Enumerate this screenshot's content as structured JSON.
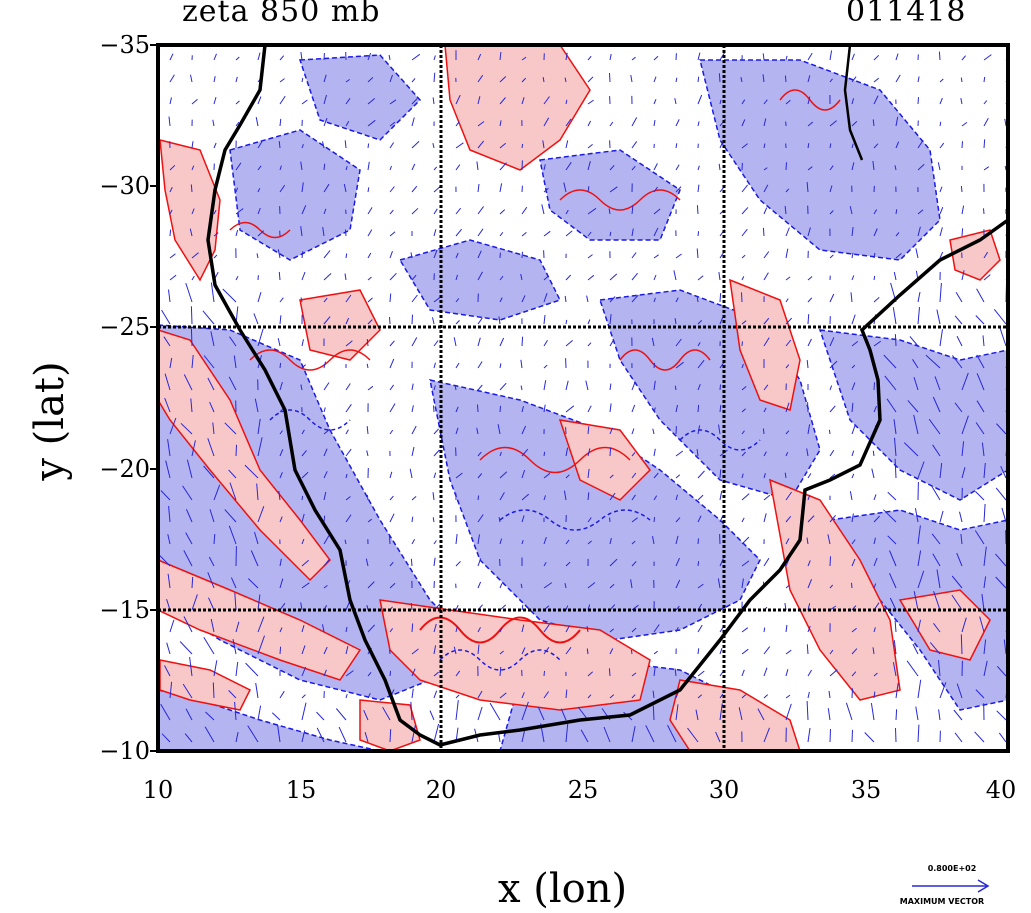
{
  "map": {
    "title": "zeta 850 mb",
    "date_code": "011418",
    "x_axis_label": "x (lon)",
    "y_axis_label": "y (lat)",
    "x_ticks": [
      "10",
      "15",
      "20",
      "25",
      "30",
      "35",
      "40"
    ],
    "y_ticks": [
      "−35",
      "−30",
      "−25",
      "−20",
      "−15",
      "−10"
    ],
    "x_range": [
      10,
      40
    ],
    "y_range": [
      -35,
      -10
    ],
    "gridlines_lon": [
      20,
      30
    ],
    "gridlines_lat": [
      -25,
      -15
    ],
    "vector_legend_value": "0.800E+02",
    "vector_legend_label": "MAXIMUM VECTOR",
    "colors": {
      "positive_fill": "#f8c8c8",
      "positive_contour": "#ee1111",
      "negative_fill": "#b4b4f0",
      "negative_contour": "#1a1ae6",
      "vector": "#2828d8",
      "coastline": "#000000"
    }
  }
}
